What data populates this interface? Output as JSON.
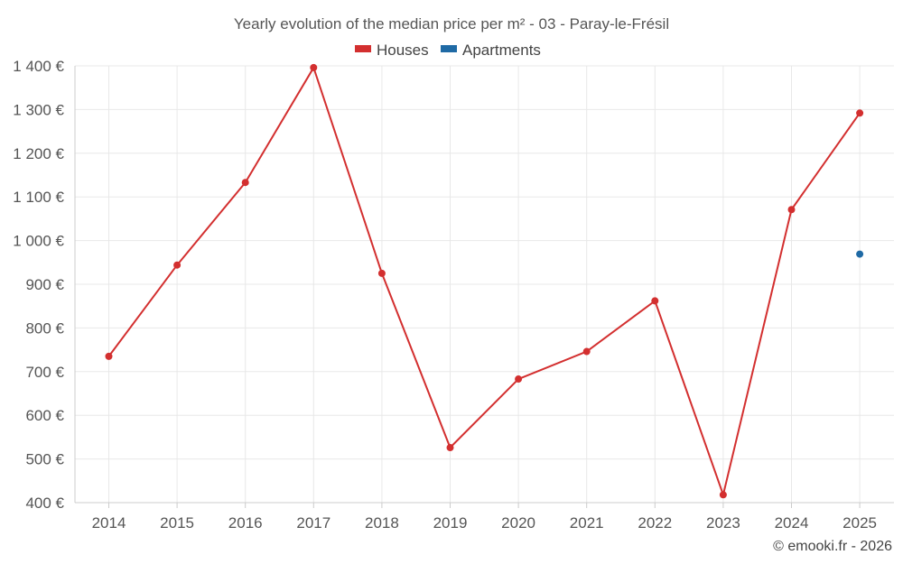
{
  "chart_data": {
    "type": "line",
    "title": "Yearly evolution of the median price per m² - 03 - Paray-le-Frésil",
    "categories": [
      "2014",
      "2015",
      "2016",
      "2017",
      "2018",
      "2019",
      "2020",
      "2021",
      "2022",
      "2023",
      "2024",
      "2025"
    ],
    "series": [
      {
        "name": "Houses",
        "color": "#d32f2f",
        "values": [
          735,
          944,
          1133,
          1396,
          925,
          526,
          683,
          746,
          862,
          418,
          1071,
          1292
        ]
      },
      {
        "name": "Apartments",
        "color": "#1f6aa5",
        "values": [
          null,
          null,
          null,
          null,
          null,
          null,
          null,
          null,
          null,
          null,
          null,
          969
        ]
      }
    ],
    "ylim": [
      400,
      1400
    ],
    "yticks": [
      400,
      500,
      600,
      700,
      800,
      900,
      1000,
      1100,
      1200,
      1300,
      1400
    ],
    "ytick_labels": [
      "400 €",
      "500 €",
      "600 €",
      "700 €",
      "800 €",
      "900 €",
      "1 000 €",
      "1 100 €",
      "1 200 €",
      "1 300 €",
      "1 400 €"
    ],
    "grid": true,
    "legend_position": "top-center"
  },
  "credit": "© emooki.fr - 2026"
}
